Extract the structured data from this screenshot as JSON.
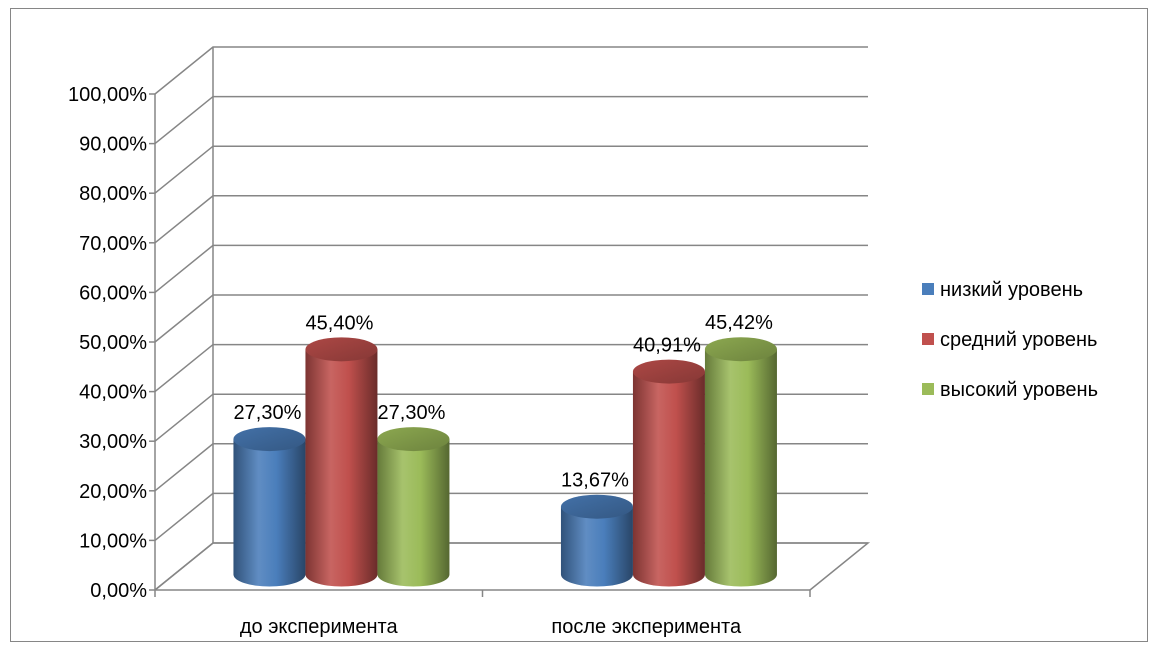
{
  "chart_data": {
    "type": "bar",
    "style": "3d-cylinder",
    "categories": [
      "до эксперимента",
      "после эксперимента"
    ],
    "series": [
      {
        "name": "низкий уровень",
        "color": "#4a7ebb",
        "values": [
          27.3,
          13.67
        ],
        "labels": [
          "27,30%",
          "13,67%"
        ]
      },
      {
        "name": "средний уровень",
        "color": "#c0504d",
        "values": [
          45.4,
          40.91
        ],
        "labels": [
          "45,40%",
          "40,91%"
        ]
      },
      {
        "name": "высокий уровень",
        "color": "#9bbb59",
        "values": [
          27.3,
          45.42
        ],
        "labels": [
          "27,30%",
          "45,42%"
        ]
      }
    ],
    "ylim": [
      0,
      100
    ],
    "yticks": [
      0,
      10,
      20,
      30,
      40,
      50,
      60,
      70,
      80,
      90,
      100
    ],
    "ytick_labels": [
      "0,00%",
      "10,00%",
      "20,00%",
      "30,00%",
      "40,00%",
      "50,00%",
      "60,00%",
      "70,00%",
      "80,00%",
      "90,00%",
      "100,00%"
    ],
    "grid": true,
    "legend": "right"
  }
}
